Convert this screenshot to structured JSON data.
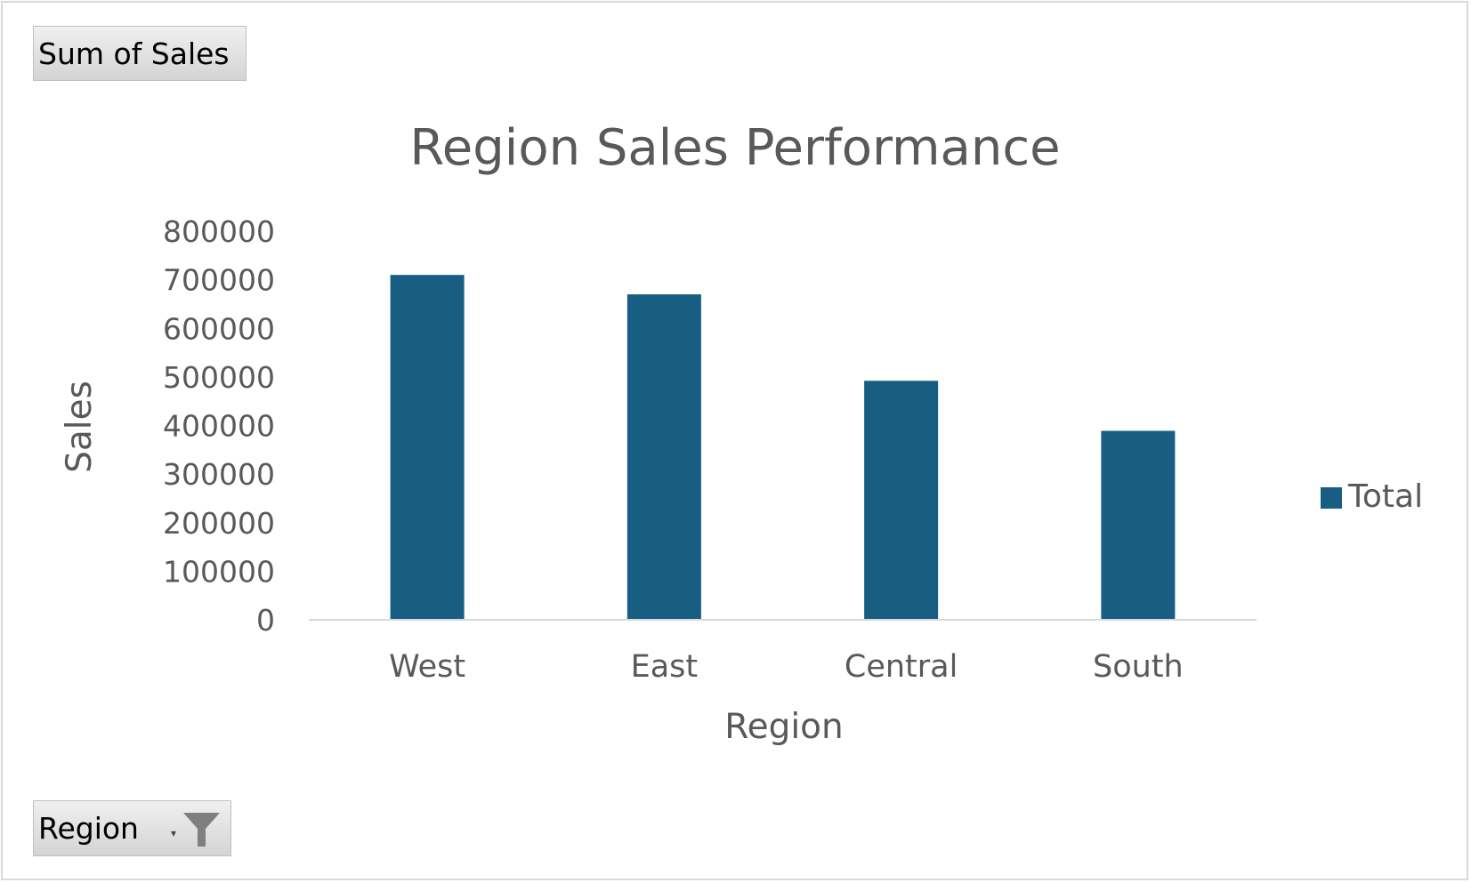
{
  "field_buttons": {
    "value_field": "Sum of Sales",
    "axis_field": "Region"
  },
  "colors": {
    "bar": "#175e82",
    "text": "#595959",
    "axis_line": "#d9d9d9"
  },
  "chart_data": {
    "type": "bar",
    "title": "Region Sales Performance",
    "xlabel": "Region",
    "ylabel": "Sales",
    "categories": [
      "West",
      "East",
      "Central",
      "South"
    ],
    "series": [
      {
        "name": "Total",
        "values": [
          710000,
          670000,
          492000,
          389000
        ]
      }
    ],
    "ylim": [
      0,
      800000
    ],
    "yticks": [
      "0",
      "100000",
      "200000",
      "300000",
      "400000",
      "500000",
      "600000",
      "700000",
      "800000"
    ],
    "grid": false,
    "legend": "right"
  }
}
